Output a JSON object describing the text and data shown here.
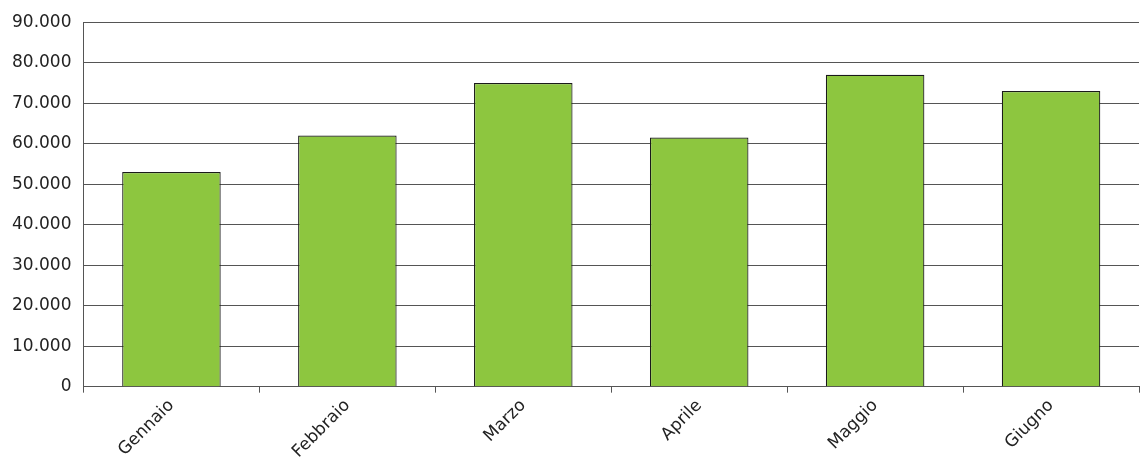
{
  "chart_data": {
    "type": "bar",
    "categories": [
      "Gennaio",
      "Febbraio",
      "Marzo",
      "Aprile",
      "Maggio",
      "Giugno"
    ],
    "values": [
      53000,
      62000,
      75000,
      61500,
      77000,
      73000
    ],
    "color": "#8dc63f",
    "ylim": [
      0,
      90000
    ],
    "yticks": [
      {
        "value": 0,
        "label": "0"
      },
      {
        "value": 10000,
        "label": "10.000"
      },
      {
        "value": 20000,
        "label": "20.000"
      },
      {
        "value": 30000,
        "label": "30.000"
      },
      {
        "value": 40000,
        "label": "40.000"
      },
      {
        "value": 50000,
        "label": "50.000"
      },
      {
        "value": 60000,
        "label": "60.000"
      },
      {
        "value": 70000,
        "label": "70.000"
      },
      {
        "value": 80000,
        "label": "80.000"
      },
      {
        "value": 90000,
        "label": "90.000"
      }
    ],
    "grid": "y",
    "legend": false
  }
}
